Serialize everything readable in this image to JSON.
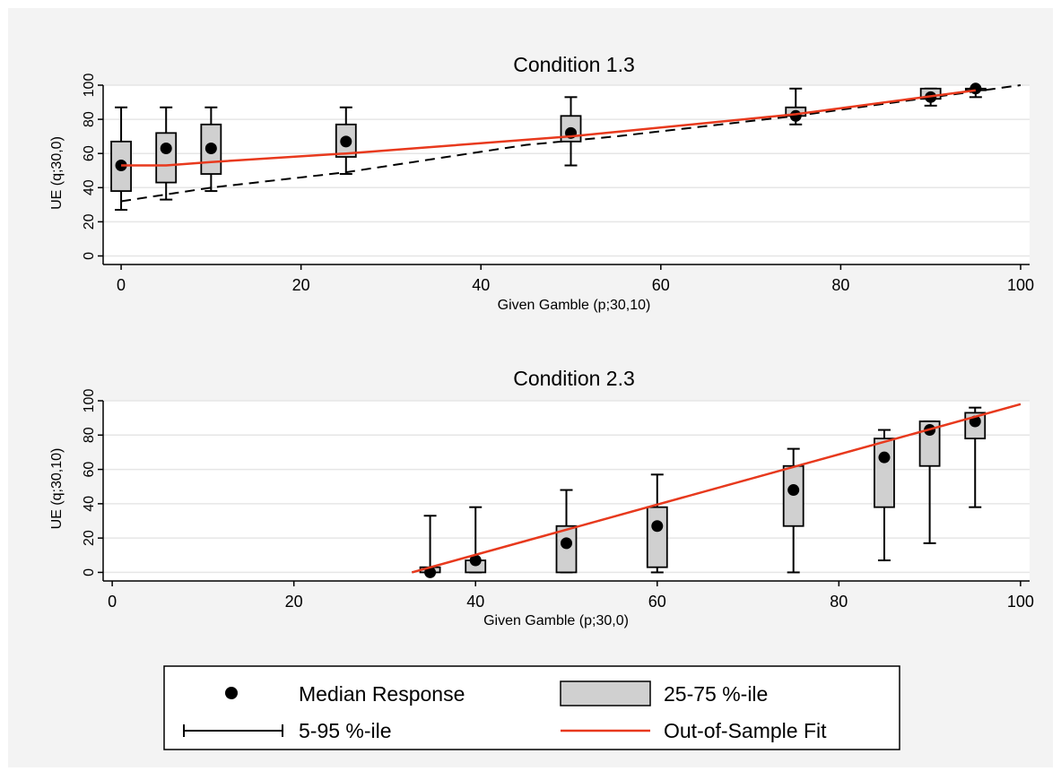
{
  "chart_data": [
    {
      "type": "box",
      "title": "Condition 1.3",
      "xlabel": "Given Gamble (p;30,10)",
      "ylabel": "UE (q;30,0)",
      "xlim": [
        -2,
        101
      ],
      "ylim": [
        -5,
        100
      ],
      "xticks": [
        0,
        20,
        40,
        60,
        80,
        100
      ],
      "yticks": [
        0,
        20,
        40,
        60,
        80,
        100
      ],
      "grid": true,
      "boxes": [
        {
          "x": 0,
          "p5": 27,
          "q1": 38,
          "median": 53,
          "q3": 67,
          "p95": 87
        },
        {
          "x": 5,
          "p5": 33,
          "q1": 43,
          "median": 63,
          "q3": 72,
          "p95": 87
        },
        {
          "x": 10,
          "p5": 38,
          "q1": 48,
          "median": 63,
          "q3": 77,
          "p95": 87
        },
        {
          "x": 25,
          "p5": 48,
          "q1": 58,
          "median": 67,
          "q3": 77,
          "p95": 87
        },
        {
          "x": 50,
          "p5": 53,
          "q1": 67,
          "median": 72,
          "q3": 82,
          "p95": 93
        },
        {
          "x": 75,
          "p5": 77,
          "q1": 82,
          "median": 82,
          "q3": 87,
          "p95": 98
        },
        {
          "x": 90,
          "p5": 88,
          "q1": 92,
          "median": 93,
          "q3": 98,
          "p95": 98
        },
        {
          "x": 95,
          "p5": 93,
          "q1": 97,
          "median": 98,
          "q3": 98,
          "p95": 98
        }
      ],
      "dashed_line": {
        "x": [
          0,
          10,
          25,
          45,
          55,
          75,
          100
        ],
        "y": [
          32,
          40,
          49,
          65,
          70,
          82,
          100
        ]
      },
      "fit_line": {
        "x": [
          0,
          5,
          10,
          25,
          50,
          75,
          95
        ],
        "y": [
          53,
          53,
          55,
          60,
          70,
          83,
          97
        ]
      }
    },
    {
      "type": "box",
      "title": "Condition 2.3",
      "xlabel": "Given Gamble (p;30,0)",
      "ylabel": "UE (q;30,10)",
      "xlim": [
        -1,
        101
      ],
      "ylim": [
        -5,
        100
      ],
      "xticks": [
        0,
        20,
        40,
        60,
        80,
        100
      ],
      "yticks": [
        0,
        20,
        40,
        60,
        80,
        100
      ],
      "grid": true,
      "boxes": [
        {
          "x": 35,
          "p5": 0,
          "q1": 0,
          "median": 0,
          "q3": 3,
          "p95": 33
        },
        {
          "x": 40,
          "p5": 0,
          "q1": 0,
          "median": 7,
          "q3": 7,
          "p95": 38
        },
        {
          "x": 50,
          "p5": 0,
          "q1": 0,
          "median": 17,
          "q3": 27,
          "p95": 48
        },
        {
          "x": 60,
          "p5": 0,
          "q1": 3,
          "median": 27,
          "q3": 38,
          "p95": 57
        },
        {
          "x": 75,
          "p5": 0,
          "q1": 27,
          "median": 48,
          "q3": 62,
          "p95": 72
        },
        {
          "x": 85,
          "p5": 7,
          "q1": 38,
          "median": 67,
          "q3": 78,
          "p95": 83
        },
        {
          "x": 90,
          "p5": 17,
          "q1": 62,
          "median": 83,
          "q3": 88,
          "p95": 88
        },
        {
          "x": 95,
          "p5": 38,
          "q1": 78,
          "median": 88,
          "q3": 93,
          "p95": 96
        }
      ],
      "dashed_line": {
        "x": [
          33,
          100
        ],
        "y": [
          0,
          98
        ]
      },
      "fit_line": {
        "x": [
          33,
          100
        ],
        "y": [
          0,
          98
        ]
      }
    }
  ],
  "legend": {
    "placement": "bottom-center",
    "items": [
      {
        "kind": "median",
        "label": "Median Response"
      },
      {
        "kind": "box",
        "label": "25-75 %-ile"
      },
      {
        "kind": "whisker",
        "label": "5-95 %-ile"
      },
      {
        "kind": "fit",
        "label": "Out-of-Sample Fit"
      }
    ]
  },
  "colors": {
    "page_background": "#f3f3f3",
    "plot_background": "#ffffff",
    "grid": "#e6e6e6",
    "box_fill": "#d0d0d0",
    "fit_line": "#e8391d",
    "ink": "#000000"
  }
}
